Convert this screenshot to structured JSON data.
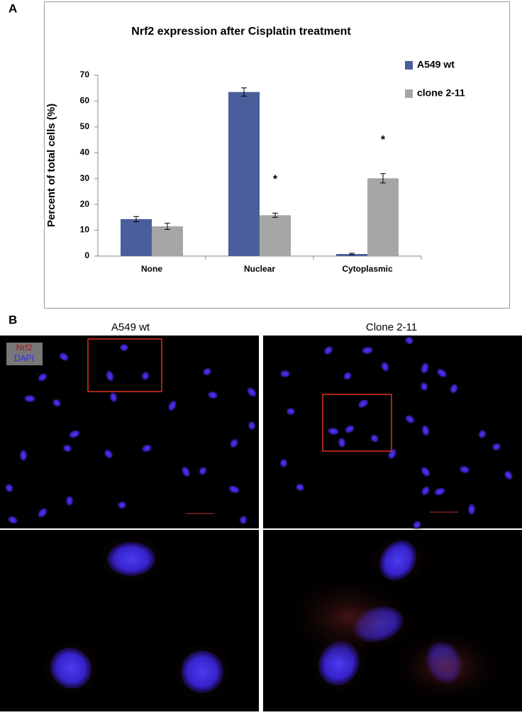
{
  "panel_labels": [
    "A",
    "B"
  ],
  "chart_data": {
    "type": "bar",
    "title": "Nrf2 expression after Cisplatin treatment",
    "y_label": "Percent of total cells (%)",
    "categories": [
      "None",
      "Nuclear",
      "Cytoplasmic"
    ],
    "series": [
      {
        "name": "A549 wt",
        "color": "#4a5e9c",
        "values": [
          14.3,
          63.5,
          0.8
        ],
        "errors": [
          1.0,
          1.6,
          0.3
        ]
      },
      {
        "name": "clone 2-11",
        "color": "#a6a6a6",
        "values": [
          11.5,
          15.8,
          30.1
        ],
        "errors": [
          1.2,
          0.8,
          1.8
        ],
        "marks": [
          null,
          "*",
          "*"
        ]
      }
    ],
    "ylim": [
      0,
      70
    ],
    "yticks": [
      0,
      10,
      20,
      30,
      40,
      50,
      60,
      70
    ],
    "grid": false,
    "legend": "right"
  },
  "images": [
    {
      "title": "A549 wt"
    },
    {
      "title": "Clone 2-11"
    }
  ],
  "stain_labels": [
    "Nrf2",
    "DAPI"
  ]
}
